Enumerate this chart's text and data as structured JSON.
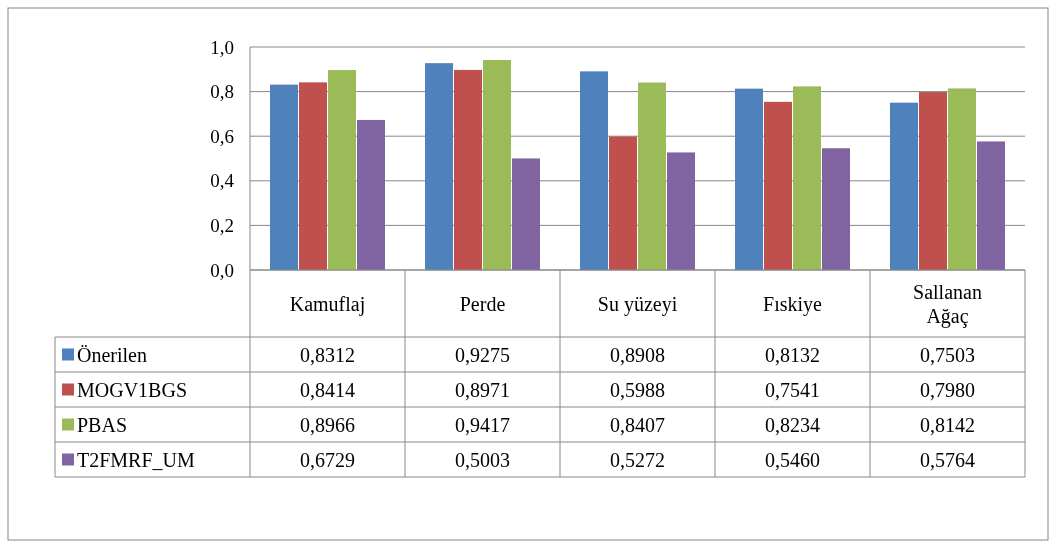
{
  "chart_data": {
    "type": "bar",
    "categories": [
      "Kamuflaj",
      "Perde",
      "Su yüzeyi",
      "Fıskiye",
      "Sallanan Ağaç"
    ],
    "ylim": [
      0,
      1
    ],
    "yticks": [
      {
        "value": 0,
        "label": "0,0"
      },
      {
        "value": 0.2,
        "label": "0,2"
      },
      {
        "value": 0.4,
        "label": "0,4"
      },
      {
        "value": 0.6,
        "label": "0,6"
      },
      {
        "value": 0.8,
        "label": "0,8"
      },
      {
        "value": 1,
        "label": "1,0"
      }
    ],
    "grid": "y",
    "legend": "bottom left",
    "series": [
      {
        "name": "Önerilen",
        "color": "#4f81bd",
        "values": [
          0.8312,
          0.9275,
          0.8908,
          0.8132,
          0.7503
        ],
        "value_labels": [
          "0,8312",
          "0,9275",
          "0,8908",
          "0,8132",
          "0,7503"
        ]
      },
      {
        "name": "MOGV1BGS",
        "color": "#c0504d",
        "values": [
          0.8414,
          0.8971,
          0.5988,
          0.7541,
          0.798
        ],
        "value_labels": [
          "0,8414",
          "0,8971",
          "0,5988",
          "0,7541",
          "0,7980"
        ]
      },
      {
        "name": "PBAS",
        "color": "#9bbb59",
        "values": [
          0.8966,
          0.9417,
          0.8407,
          0.8234,
          0.8142
        ],
        "value_labels": [
          "0,8966",
          "0,9417",
          "0,8407",
          "0,8234",
          "0,8142"
        ]
      },
      {
        "name": "T2FMRF_UM",
        "color": "#8064a2",
        "values": [
          0.6729,
          0.5003,
          0.5272,
          0.546,
          0.5764
        ],
        "value_labels": [
          "0,6729",
          "0,5003",
          "0,5272",
          "0,5460",
          "0,5764"
        ]
      }
    ]
  }
}
